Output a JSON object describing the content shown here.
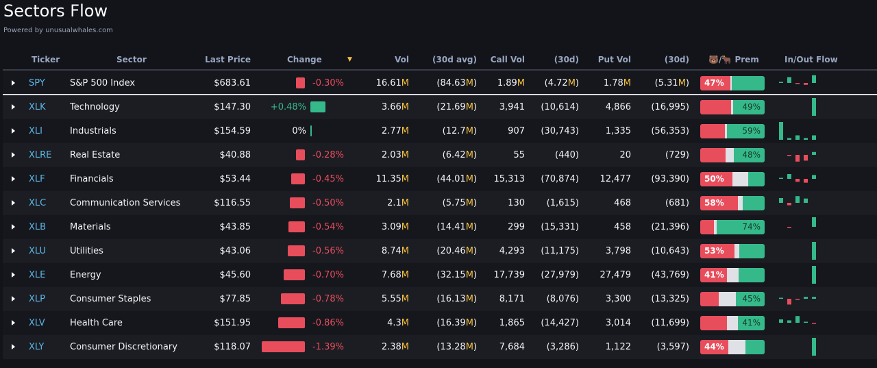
{
  "title": "Sectors Flow",
  "powered": "Powered by unusualwhales.com",
  "colors": {
    "red": "#e84d5c",
    "green": "#35b98a",
    "neutral": "#dfe1e6",
    "ticker": "#5bb8e8",
    "suffix": "#f5c342"
  },
  "headers": {
    "ticker": "Ticker",
    "sector": "Sector",
    "last": "Last Price",
    "change": "Change",
    "sort": "▼",
    "vol": "Vol",
    "vol30": "(30d avg)",
    "call": "Call Vol",
    "call30": "(30d)",
    "put": "Put Vol",
    "put30": "(30d)",
    "prem": "🐻/🐂 Prem",
    "flow": "In/Out Flow"
  },
  "rows": [
    {
      "ticker": "SPY",
      "sector": "S&P 500 Index",
      "last": "$683.61",
      "change": "-0.30%",
      "chg": -0.3,
      "vol": "16.61M",
      "vol30": "(84.63M)",
      "call": "1.89M",
      "call30": "(4.72M)",
      "put": "1.78M",
      "put30": "(5.31M)",
      "prem": {
        "bear": 47,
        "neutral": 2,
        "bull": 51,
        "label": "47%",
        "side": "bear"
      },
      "flow": [
        0.05,
        0.6,
        -0.1,
        -0.2,
        0.8
      ]
    },
    {
      "ticker": "XLK",
      "sector": "Technology",
      "last": "$147.30",
      "change": "+0.48%",
      "chg": 0.48,
      "vol": "3.66M",
      "vol30": "(21.69M)",
      "call": "3,941",
      "call30": "(10,614)",
      "put": "4,866",
      "put30": "(16,995)",
      "prem": {
        "bear": 48,
        "neutral": 3,
        "bull": 49,
        "label": "49%",
        "side": "bull"
      },
      "flow": [
        0,
        0,
        0,
        0,
        1
      ]
    },
    {
      "ticker": "XLI",
      "sector": "Industrials",
      "last": "$154.59",
      "change": "0%",
      "chg": 0,
      "vol": "2.77M",
      "vol30": "(12.7M)",
      "call": "907",
      "call30": "(30,743)",
      "put": "1,335",
      "put30": "(56,353)",
      "prem": {
        "bear": 38,
        "neutral": 3,
        "bull": 59,
        "label": "59%",
        "side": "bull"
      },
      "flow": [
        1,
        0.1,
        0.25,
        0.1,
        0.25
      ]
    },
    {
      "ticker": "XLRE",
      "sector": "Real Estate",
      "last": "$40.88",
      "change": "-0.28%",
      "chg": -0.28,
      "vol": "2.03M",
      "vol30": "(6.42M)",
      "call": "55",
      "call30": "(440)",
      "put": "20",
      "put30": "(729)",
      "prem": {
        "bear": 39,
        "neutral": 13,
        "bull": 48,
        "label": "48%",
        "side": "bull"
      },
      "flow": [
        0,
        -0.05,
        -0.7,
        -0.6,
        0.3
      ]
    },
    {
      "ticker": "XLF",
      "sector": "Financials",
      "last": "$53.44",
      "change": "-0.45%",
      "chg": -0.45,
      "vol": "11.35M",
      "vol30": "(44.01M)",
      "call": "15,313",
      "call30": "(70,874)",
      "put": "12,477",
      "put30": "(93,390)",
      "prem": {
        "bear": 50,
        "neutral": 24,
        "bull": 26,
        "label": "50%",
        "side": "bear"
      },
      "flow": [
        0.05,
        0.5,
        -0.3,
        -0.4,
        0.4
      ]
    },
    {
      "ticker": "XLC",
      "sector": "Communication Services",
      "last": "$116.55",
      "change": "-0.50%",
      "chg": -0.5,
      "vol": "2.1M",
      "vol30": "(5.75M)",
      "call": "130",
      "call30": "(1,615)",
      "put": "468",
      "put30": "(681)",
      "prem": {
        "bear": 58,
        "neutral": 8,
        "bull": 34,
        "label": "58%",
        "side": "bear"
      },
      "flow": [
        0.5,
        -0.25,
        0.7,
        0.45,
        0
      ]
    },
    {
      "ticker": "XLB",
      "sector": "Materials",
      "last": "$43.85",
      "change": "-0.54%",
      "chg": -0.54,
      "vol": "3.09M",
      "vol30": "(14.41M)",
      "call": "299",
      "call30": "(15,331)",
      "put": "458",
      "put30": "(21,396)",
      "prem": {
        "bear": 21,
        "neutral": 5,
        "bull": 74,
        "label": "74%",
        "side": "bull"
      },
      "flow": [
        0,
        -0.03,
        0,
        0,
        1
      ]
    },
    {
      "ticker": "XLU",
      "sector": "Utilities",
      "last": "$43.06",
      "change": "-0.56%",
      "chg": -0.56,
      "vol": "8.74M",
      "vol30": "(20.46M)",
      "call": "4,293",
      "call30": "(11,175)",
      "put": "3,798",
      "put30": "(10,643)",
      "prem": {
        "bear": 53,
        "neutral": 8,
        "bull": 39,
        "label": "53%",
        "side": "bear"
      },
      "flow": [
        0,
        0,
        0,
        0,
        1
      ]
    },
    {
      "ticker": "XLE",
      "sector": "Energy",
      "last": "$45.60",
      "change": "-0.70%",
      "chg": -0.7,
      "vol": "7.68M",
      "vol30": "(32.15M)",
      "call": "17,739",
      "call30": "(27,979)",
      "put": "27,479",
      "put30": "(43,769)",
      "prem": {
        "bear": 41,
        "neutral": 19,
        "bull": 40,
        "label": "41%",
        "side": "bear"
      },
      "flow": [
        0,
        0,
        0,
        0,
        1
      ]
    },
    {
      "ticker": "XLP",
      "sector": "Consumer Staples",
      "last": "$77.85",
      "change": "-0.78%",
      "chg": -0.78,
      "vol": "5.55M",
      "vol30": "(16.13M)",
      "call": "8,171",
      "call30": "(8,076)",
      "put": "3,300",
      "put30": "(13,325)",
      "prem": {
        "bear": 29,
        "neutral": 26,
        "bull": 45,
        "label": "45%",
        "side": "bull"
      },
      "flow": [
        0.05,
        -0.6,
        -0.03,
        0.2,
        0.2
      ]
    },
    {
      "ticker": "XLV",
      "sector": "Health Care",
      "last": "$151.95",
      "change": "-0.86%",
      "chg": -0.86,
      "vol": "4.3M",
      "vol30": "(16.39M)",
      "call": "1,865",
      "call30": "(14,427)",
      "put": "3,014",
      "put30": "(11,699)",
      "prem": {
        "bear": 41,
        "neutral": 18,
        "bull": 41,
        "label": "41%",
        "side": "bull"
      },
      "flow": [
        0.35,
        0.25,
        0.7,
        0.03,
        -0.03
      ]
    },
    {
      "ticker": "XLY",
      "sector": "Consumer Discretionary",
      "last": "$118.07",
      "change": "-1.39%",
      "chg": -1.39,
      "vol": "2.38M",
      "vol30": "(13.28M)",
      "call": "7,684",
      "call30": "(3,286)",
      "put": "1,122",
      "put30": "(3,597)",
      "prem": {
        "bear": 44,
        "neutral": 26,
        "bull": 30,
        "label": "44%",
        "side": "bear"
      },
      "flow": [
        0,
        0,
        0,
        0,
        1
      ]
    }
  ]
}
